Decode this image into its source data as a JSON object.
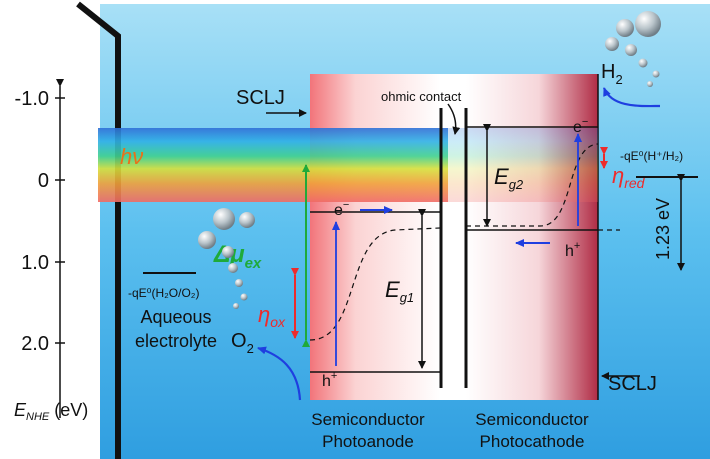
{
  "axis": {
    "ticks": [
      "-1.0",
      "0",
      "1.0",
      "2.0"
    ],
    "label_main": "E",
    "label_sub": "NHE",
    "label_unit": " (eV)"
  },
  "labels": {
    "sclj_top": "SCLJ",
    "sclj_bottom": "SCLJ",
    "ohmic_contact": "ohmic contact",
    "hv": "hν",
    "delta_mu_main": "Δμ",
    "delta_mu_sub": "ex",
    "eta_ox_main": "η",
    "eta_ox_sub": "ox",
    "eta_red_main": "η",
    "eta_red_sub": "red",
    "eg1_main": "E",
    "eg1_sub": "g1",
    "eg2_main": "E",
    "eg2_sub": "g2",
    "e_minus": "e",
    "e_minus_sup": "−",
    "h_plus": "h",
    "h_plus_sup": "+",
    "o2_main": "O",
    "o2_sub": "2",
    "h2_main": "H",
    "h2_sub": "2",
    "ox_potential": "-qE⁰(H₂O/O₂)",
    "red_potential": "-qE⁰(H⁺/H₂)",
    "voltage": "1.23 eV",
    "electrolyte_line1": "Aqueous",
    "electrolyte_line2": "electrolyte",
    "photoanode_line1": "Semiconductor",
    "photoanode_line2": "Photoanode",
    "photocathode_line1": "Semiconductor",
    "photocathode_line2": "Photocathode"
  },
  "colors": {
    "electrolyte_blue": "#3aaee8",
    "arrow_blue": "#1f3fe0",
    "eta_red": "#ee2b2b",
    "delta_green": "#1faa3a",
    "hv_orange": "#e8721a",
    "semiconductor_red": "#d8404a",
    "photocathode_red": "#a8243c"
  }
}
